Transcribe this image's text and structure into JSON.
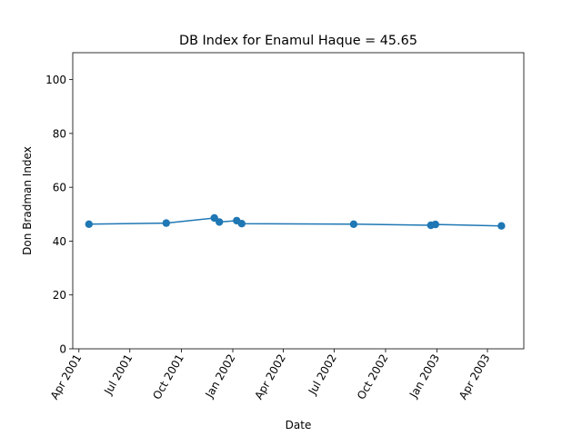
{
  "chart_data": {
    "type": "line",
    "title": "DB Index for Enamul Haque = 45.65",
    "xlabel": "Date",
    "ylabel": "Don Bradman Index",
    "xlim": [
      "2001-03-21",
      "2003-06-05"
    ],
    "ylim": [
      0,
      110
    ],
    "x_ticks": [
      {
        "date": "2001-04-01",
        "label": "Apr 2001"
      },
      {
        "date": "2001-07-01",
        "label": "Jul 2001"
      },
      {
        "date": "2001-10-01",
        "label": "Oct 2001"
      },
      {
        "date": "2002-01-01",
        "label": "Jan 2002"
      },
      {
        "date": "2002-04-01",
        "label": "Apr 2002"
      },
      {
        "date": "2002-07-01",
        "label": "Jul 2002"
      },
      {
        "date": "2002-10-01",
        "label": "Oct 2002"
      },
      {
        "date": "2003-01-01",
        "label": "Jan 2003"
      },
      {
        "date": "2003-04-01",
        "label": "Apr 2003"
      }
    ],
    "y_ticks": [
      0,
      20,
      40,
      60,
      80,
      100
    ],
    "grid": false,
    "color": "#1f77b4",
    "series": [
      {
        "x": [
          "2001-04-19",
          "2001-09-04",
          "2001-11-29",
          "2001-12-08",
          "2002-01-08",
          "2002-01-17",
          "2002-08-05",
          "2002-12-21",
          "2002-12-29",
          "2003-04-26"
        ],
        "y": [
          46.3,
          46.7,
          48.6,
          47.1,
          47.6,
          46.5,
          46.3,
          45.9,
          46.2,
          45.65
        ]
      }
    ]
  }
}
